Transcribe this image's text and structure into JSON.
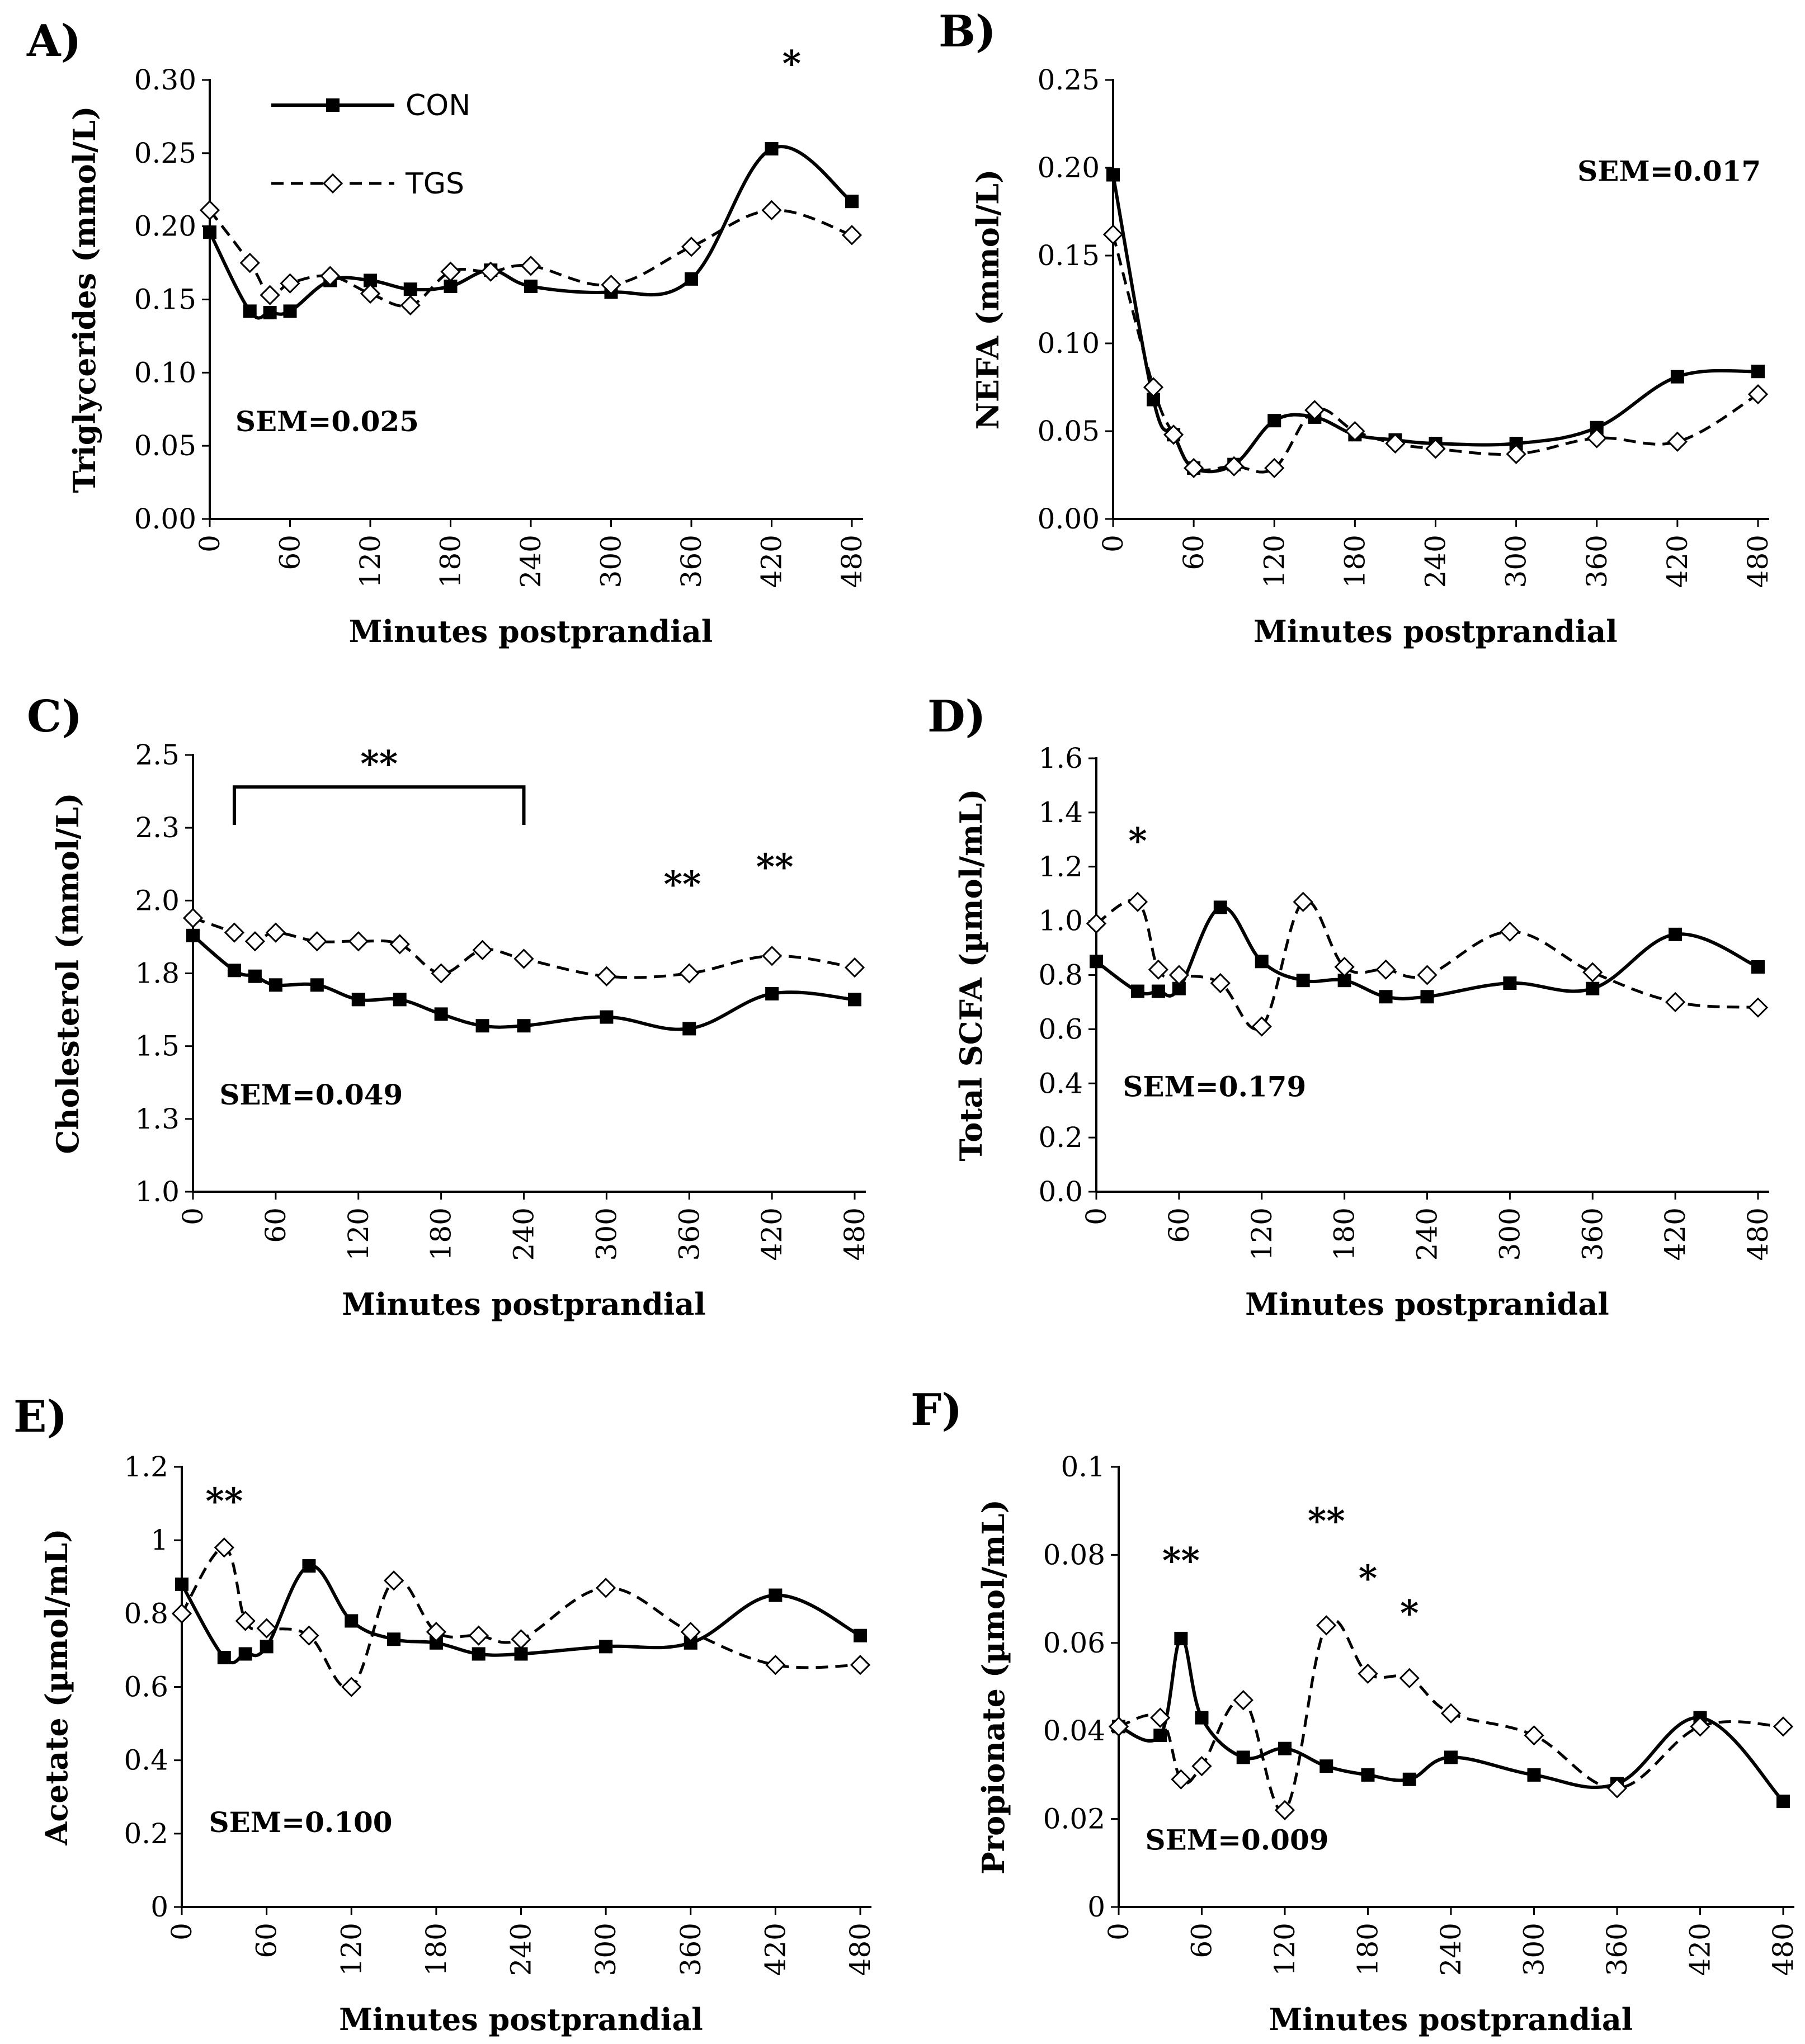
{
  "legend": {
    "con": "CON",
    "tgs": "TGS"
  },
  "colors": {
    "ink": "#000000",
    "marker_open": "#ffffff"
  },
  "chart_data": [
    {
      "id": "A",
      "panel_label": "A)",
      "type": "line",
      "ylabel": "Triglycerides (mmol/L)",
      "xlabel": "Minutes postprandial",
      "ylim": [
        0,
        0.3
      ],
      "yticks": [
        "0.00",
        "0.05",
        "0.10",
        "0.15",
        "0.20",
        "0.25",
        "0.30"
      ],
      "xlim": [
        0,
        480
      ],
      "xticks": [
        "0",
        "60",
        "120",
        "180",
        "240",
        "300",
        "360",
        "420",
        "480"
      ],
      "sem": "SEM=0.025",
      "show_legend": true,
      "series": [
        {
          "name": "CON",
          "x": [
            0,
            30,
            45,
            60,
            90,
            120,
            150,
            180,
            210,
            240,
            300,
            360,
            420,
            480
          ],
          "y": [
            0.196,
            0.142,
            0.141,
            0.142,
            0.163,
            0.163,
            0.157,
            0.159,
            0.17,
            0.159,
            0.155,
            0.164,
            0.253,
            0.217
          ]
        },
        {
          "name": "TGS",
          "x": [
            0,
            30,
            45,
            60,
            90,
            120,
            150,
            180,
            210,
            240,
            300,
            360,
            420,
            480
          ],
          "y": [
            0.211,
            0.175,
            0.153,
            0.161,
            0.166,
            0.154,
            0.146,
            0.169,
            0.169,
            0.173,
            0.16,
            0.186,
            0.211,
            0.194
          ]
        }
      ],
      "annotations": [
        {
          "text": "*",
          "x": 435,
          "y": 0.312
        }
      ]
    },
    {
      "id": "B",
      "panel_label": "B)",
      "type": "line",
      "ylabel": "NEFA (mmol/L)",
      "xlabel": "Minutes postprandial",
      "ylim": [
        0,
        0.25
      ],
      "yticks": [
        "0.00",
        "0.05",
        "0.10",
        "0.15",
        "0.20",
        "0.25"
      ],
      "xlim": [
        0,
        480
      ],
      "xticks": [
        "0",
        "60",
        "120",
        "180",
        "240",
        "300",
        "360",
        "420",
        "480"
      ],
      "sem": "SEM=0.017",
      "show_legend": false,
      "series": [
        {
          "name": "CON",
          "x": [
            0,
            30,
            45,
            60,
            90,
            120,
            150,
            180,
            210,
            240,
            300,
            360,
            420,
            480
          ],
          "y": [
            0.196,
            0.068,
            0.048,
            0.029,
            0.031,
            0.056,
            0.058,
            0.048,
            0.045,
            0.043,
            0.043,
            0.052,
            0.081,
            0.084
          ]
        },
        {
          "name": "TGS",
          "x": [
            0,
            30,
            45,
            60,
            90,
            120,
            150,
            180,
            210,
            240,
            300,
            360,
            420,
            480
          ],
          "y": [
            0.162,
            0.075,
            0.048,
            0.029,
            0.03,
            0.029,
            0.062,
            0.05,
            0.043,
            0.04,
            0.037,
            0.046,
            0.044,
            0.071
          ]
        }
      ],
      "annotations": []
    },
    {
      "id": "C",
      "panel_label": "C)",
      "type": "line",
      "ylabel": "Cholesterol (mmol/L)",
      "xlabel": "Minutes postprandial",
      "ylim": [
        1.0,
        2.5
      ],
      "yticks": [
        "1.0",
        "1.3",
        "1.5",
        "1.8",
        "2.0",
        "2.3",
        "2.5"
      ],
      "xlim": [
        0,
        480
      ],
      "xticks": [
        "0",
        "60",
        "120",
        "180",
        "240",
        "300",
        "360",
        "420",
        "480"
      ],
      "sem": "SEM=0.049",
      "show_legend": false,
      "series": [
        {
          "name": "CON",
          "x": [
            0,
            30,
            45,
            60,
            90,
            120,
            150,
            180,
            210,
            240,
            300,
            360,
            420,
            480
          ],
          "y": [
            1.88,
            1.76,
            1.74,
            1.71,
            1.71,
            1.66,
            1.66,
            1.61,
            1.57,
            1.57,
            1.6,
            1.56,
            1.68,
            1.66
          ]
        },
        {
          "name": "TGS",
          "x": [
            0,
            30,
            45,
            60,
            90,
            120,
            150,
            180,
            210,
            240,
            300,
            360,
            420,
            480
          ],
          "y": [
            1.94,
            1.89,
            1.86,
            1.89,
            1.86,
            1.86,
            1.85,
            1.75,
            1.83,
            1.8,
            1.74,
            1.75,
            1.81,
            1.77
          ]
        }
      ],
      "bracket": {
        "x1": 30,
        "x2": 240,
        "y_top": 2.39,
        "y_bottom": 2.26,
        "label": "**"
      },
      "annotations": [
        {
          "text": "**",
          "x": 355,
          "y": 2.06
        },
        {
          "text": "**",
          "x": 422,
          "y": 2.12
        }
      ]
    },
    {
      "id": "D",
      "panel_label": "D)",
      "type": "line",
      "ylabel": "Total SCFA (µmol/mL)",
      "xlabel": "Minutes postpranidal",
      "ylim": [
        0,
        1.6
      ],
      "yticks": [
        "0.0",
        "0.2",
        "0.4",
        "0.6",
        "0.8",
        "1.0",
        "1.2",
        "1.4",
        "1.6"
      ],
      "xlim": [
        0,
        480
      ],
      "xticks": [
        "0",
        "60",
        "120",
        "180",
        "240",
        "300",
        "360",
        "420",
        "480"
      ],
      "sem": "SEM=0.179",
      "show_legend": false,
      "series": [
        {
          "name": "CON",
          "x": [
            0,
            30,
            45,
            60,
            90,
            120,
            150,
            180,
            210,
            240,
            300,
            360,
            420,
            480
          ],
          "y": [
            0.85,
            0.74,
            0.74,
            0.75,
            1.05,
            0.85,
            0.78,
            0.78,
            0.72,
            0.72,
            0.77,
            0.75,
            0.95,
            0.83
          ]
        },
        {
          "name": "TGS",
          "x": [
            0,
            30,
            45,
            60,
            90,
            120,
            150,
            180,
            210,
            240,
            300,
            360,
            420,
            480
          ],
          "y": [
            0.99,
            1.07,
            0.82,
            0.8,
            0.77,
            0.61,
            1.07,
            0.83,
            0.82,
            0.8,
            0.96,
            0.81,
            0.7,
            0.68
          ]
        }
      ],
      "annotations": [
        {
          "text": "*",
          "x": 30,
          "y": 1.3
        }
      ]
    },
    {
      "id": "E",
      "panel_label": "E)",
      "type": "line",
      "ylabel": "Acetate (µmol/mL)",
      "xlabel": "Minutes postprandial",
      "ylim": [
        0,
        1.2
      ],
      "yticks": [
        "0",
        "0.2",
        "0.4",
        "0.6",
        "0.8",
        "1",
        "1.2"
      ],
      "xlim": [
        0,
        480
      ],
      "xticks": [
        "0",
        "60",
        "120",
        "180",
        "240",
        "300",
        "360",
        "420",
        "480"
      ],
      "sem": "SEM=0.100",
      "show_legend": false,
      "series": [
        {
          "name": "CON",
          "x": [
            0,
            30,
            45,
            60,
            90,
            120,
            150,
            180,
            210,
            240,
            300,
            360,
            420,
            480
          ],
          "y": [
            0.88,
            0.68,
            0.69,
            0.71,
            0.93,
            0.78,
            0.73,
            0.72,
            0.69,
            0.69,
            0.71,
            0.72,
            0.85,
            0.74
          ]
        },
        {
          "name": "TGS",
          "x": [
            0,
            30,
            45,
            60,
            90,
            120,
            150,
            180,
            210,
            240,
            300,
            360,
            420,
            480
          ],
          "y": [
            0.8,
            0.98,
            0.78,
            0.76,
            0.74,
            0.6,
            0.89,
            0.75,
            0.74,
            0.73,
            0.87,
            0.75,
            0.66,
            0.66
          ]
        }
      ],
      "annotations": [
        {
          "text": "**",
          "x": 30,
          "y": 1.11
        }
      ]
    },
    {
      "id": "F",
      "panel_label": "F)",
      "type": "line",
      "ylabel": "Propionate (µmol/mL)",
      "xlabel": "Minutes postprandial",
      "ylim": [
        0,
        0.1
      ],
      "yticks": [
        "0",
        "0.02",
        "0.04",
        "0.06",
        "0.08",
        "0.1"
      ],
      "xlim": [
        0,
        480
      ],
      "xticks": [
        "0",
        "60",
        "120",
        "180",
        "240",
        "300",
        "360",
        "420",
        "480"
      ],
      "sem": "SEM=0.009",
      "show_legend": false,
      "series": [
        {
          "name": "CON",
          "x": [
            0,
            30,
            45,
            60,
            90,
            120,
            150,
            180,
            210,
            240,
            300,
            360,
            420,
            480
          ],
          "y": [
            0.041,
            0.039,
            0.061,
            0.043,
            0.034,
            0.036,
            0.032,
            0.03,
            0.029,
            0.034,
            0.03,
            0.028,
            0.043,
            0.024
          ]
        },
        {
          "name": "TGS",
          "x": [
            0,
            30,
            45,
            60,
            90,
            120,
            150,
            180,
            210,
            240,
            300,
            360,
            420,
            480
          ],
          "y": [
            0.041,
            0.043,
            0.029,
            0.032,
            0.047,
            0.022,
            0.064,
            0.053,
            0.052,
            0.044,
            0.039,
            0.027,
            0.041,
            0.041
          ]
        }
      ],
      "annotations": [
        {
          "text": "**",
          "x": 45,
          "y": 0.079
        },
        {
          "text": "**",
          "x": 150,
          "y": 0.088
        },
        {
          "text": "*",
          "x": 180,
          "y": 0.075
        },
        {
          "text": "*",
          "x": 210,
          "y": 0.067
        }
      ]
    }
  ]
}
